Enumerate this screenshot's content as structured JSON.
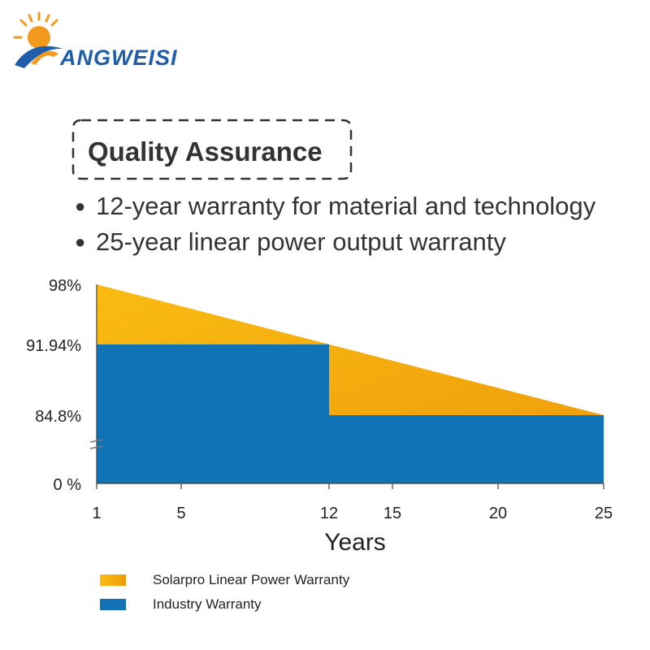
{
  "logo": {
    "text": "ANGWEISI"
  },
  "heading": {
    "title": "Quality Assurance"
  },
  "bullets": [
    {
      "dot": "●",
      "text": "12-year warranty for material and technology"
    },
    {
      "dot": "●",
      "text": "25-year linear power output warranty"
    }
  ],
  "colors": {
    "solarpro_start": "#F9BC12",
    "solarpro_end": "#EE9A0A",
    "industry": "#0F73B6",
    "logo_orange": "#F29A1E",
    "logo_blue": "#1F5CA9"
  },
  "chart_data": {
    "type": "area",
    "xlabel": "Years",
    "ylabel": "",
    "x_ticks": [
      1,
      5,
      12,
      15,
      20,
      25
    ],
    "y_ticks": [
      {
        "value": 0,
        "label": "0 %"
      },
      {
        "value": 84.8,
        "label": "84.8%"
      },
      {
        "value": 91.94,
        "label": "91.94%"
      },
      {
        "value": 98,
        "label": "98%"
      }
    ],
    "xlim": [
      1,
      25
    ],
    "axis_break": true,
    "grid": false,
    "series": [
      {
        "name": "Solarpro Linear Power Warranty",
        "x": [
          1,
          25
        ],
        "y": [
          98,
          84.8
        ]
      },
      {
        "name": "Industry Warranty",
        "x": [
          1,
          12,
          12,
          25
        ],
        "y": [
          91.94,
          91.94,
          84.8,
          84.8
        ]
      }
    ]
  }
}
